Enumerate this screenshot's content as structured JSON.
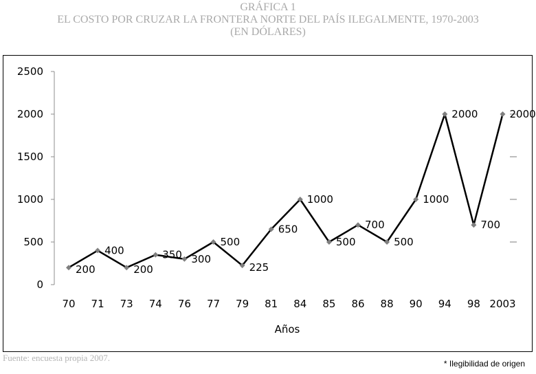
{
  "header": {
    "line1": "GRÁFICA 1",
    "line2": "EL COSTO POR CRUZAR LA FRONTERA NORTE DEL PAÍS ILEGALMENTE, 1970-2003",
    "line3": "(EN DÓLARES)"
  },
  "footer": {
    "source": "Fuente: encuesta propia 2007.",
    "note": "* Ilegibilidad de origen"
  },
  "chart_data": {
    "type": "line",
    "title": "EL COSTO POR CRUZAR LA FRONTERA NORTE DEL PAÍS ILEGALMENTE, 1970-2003",
    "xlabel": "Años",
    "ylabel": "",
    "categories": [
      "70",
      "71",
      "73",
      "74",
      "76",
      "77",
      "79",
      "81",
      "84",
      "85",
      "86",
      "88",
      "90",
      "94",
      "98",
      "2003"
    ],
    "values": [
      200,
      400,
      200,
      350,
      300,
      500,
      225,
      650,
      1000,
      500,
      700,
      500,
      1000,
      2000,
      700,
      2000
    ],
    "labels": [
      "200",
      "400",
      "200",
      "350",
      "300",
      "500",
      "225",
      "650",
      "1000",
      "500",
      "700",
      "500",
      "1000",
      "2000",
      "700",
      "2000"
    ],
    "ylim": [
      0,
      2500
    ],
    "yticks": [
      "0",
      "500",
      "1000",
      "1500",
      "2000",
      "2500"
    ],
    "grid": false,
    "legend": "none",
    "line_color": "#000000",
    "marker_color": "#7f7f7f"
  }
}
